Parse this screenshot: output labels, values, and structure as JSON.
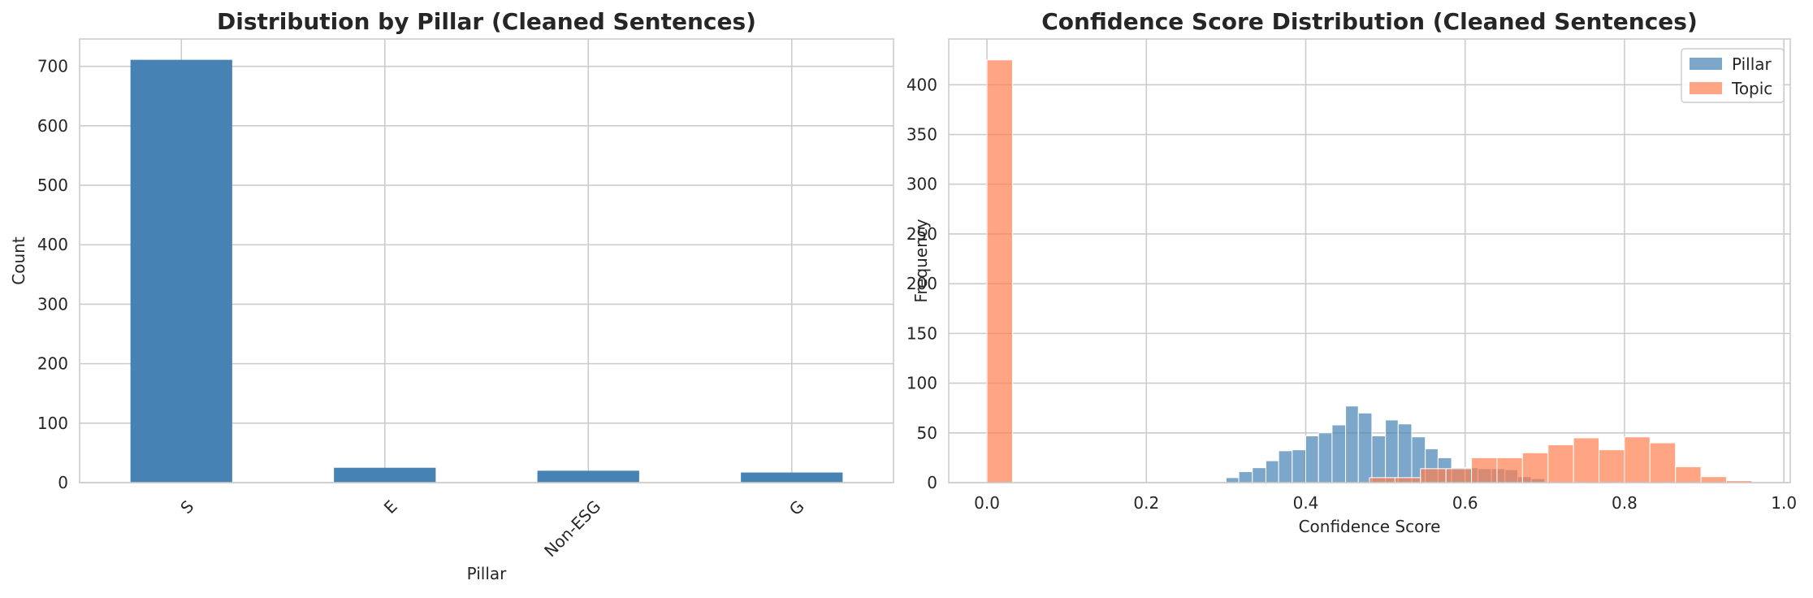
{
  "chart_data": [
    {
      "type": "bar",
      "title": "Distribution by Pillar (Cleaned Sentences)",
      "xlabel": "Pillar",
      "ylabel": "Count",
      "categories": [
        "S",
        "E",
        "Non-ESG",
        "G"
      ],
      "values": [
        711,
        25,
        20,
        17
      ],
      "ylim": [
        0,
        746
      ],
      "yticks": [
        0,
        100,
        200,
        300,
        400,
        500,
        600,
        700
      ],
      "bar_color": "#4682b4",
      "grid": true,
      "xtick_rotation": 45
    },
    {
      "type": "histogram",
      "title": "Confidence Score Distribution (Cleaned Sentences)",
      "xlabel": "Confidence Score",
      "ylabel": "Frequency",
      "xlim": [
        -0.048,
        1.008
      ],
      "ylim": [
        0,
        446
      ],
      "xticks": [
        0.0,
        0.2,
        0.4,
        0.6,
        0.8,
        1.0
      ],
      "xtick_labels": [
        "0.0",
        "0.2",
        "0.4",
        "0.6",
        "0.8",
        "1.0"
      ],
      "yticks": [
        0,
        50,
        100,
        150,
        200,
        250,
        300,
        350,
        400
      ],
      "grid": true,
      "legend_position": "top-right",
      "series": [
        {
          "name": "Pillar",
          "color": "#4682b4",
          "opacity": 0.7,
          "bins": [
            {
              "x0": 0.3,
              "x1": 0.316,
              "y": 5
            },
            {
              "x0": 0.316,
              "x1": 0.333,
              "y": 11
            },
            {
              "x0": 0.333,
              "x1": 0.35,
              "y": 15
            },
            {
              "x0": 0.35,
              "x1": 0.366,
              "y": 22
            },
            {
              "x0": 0.366,
              "x1": 0.383,
              "y": 32
            },
            {
              "x0": 0.383,
              "x1": 0.4,
              "y": 33
            },
            {
              "x0": 0.4,
              "x1": 0.416,
              "y": 47
            },
            {
              "x0": 0.416,
              "x1": 0.433,
              "y": 50
            },
            {
              "x0": 0.433,
              "x1": 0.45,
              "y": 58
            },
            {
              "x0": 0.45,
              "x1": 0.466,
              "y": 77
            },
            {
              "x0": 0.466,
              "x1": 0.483,
              "y": 70
            },
            {
              "x0": 0.483,
              "x1": 0.5,
              "y": 47
            },
            {
              "x0": 0.5,
              "x1": 0.516,
              "y": 63
            },
            {
              "x0": 0.516,
              "x1": 0.533,
              "y": 59
            },
            {
              "x0": 0.533,
              "x1": 0.55,
              "y": 46
            },
            {
              "x0": 0.55,
              "x1": 0.566,
              "y": 34
            },
            {
              "x0": 0.566,
              "x1": 0.583,
              "y": 25
            },
            {
              "x0": 0.583,
              "x1": 0.6,
              "y": 15
            },
            {
              "x0": 0.6,
              "x1": 0.616,
              "y": 15
            },
            {
              "x0": 0.616,
              "x1": 0.633,
              "y": 14
            },
            {
              "x0": 0.633,
              "x1": 0.65,
              "y": 14
            },
            {
              "x0": 0.65,
              "x1": 0.666,
              "y": 13
            },
            {
              "x0": 0.666,
              "x1": 0.683,
              "y": 6
            },
            {
              "x0": 0.683,
              "x1": 0.7,
              "y": 4
            }
          ]
        },
        {
          "name": "Topic",
          "color": "#ff7f50",
          "opacity": 0.7,
          "bins": [
            {
              "x0": 0.0,
              "x1": 0.032,
              "y": 425
            },
            {
              "x0": 0.48,
              "x1": 0.512,
              "y": 5
            },
            {
              "x0": 0.512,
              "x1": 0.544,
              "y": 5
            },
            {
              "x0": 0.544,
              "x1": 0.576,
              "y": 14
            },
            {
              "x0": 0.576,
              "x1": 0.608,
              "y": 14
            },
            {
              "x0": 0.608,
              "x1": 0.64,
              "y": 25
            },
            {
              "x0": 0.64,
              "x1": 0.672,
              "y": 25
            },
            {
              "x0": 0.672,
              "x1": 0.704,
              "y": 30
            },
            {
              "x0": 0.704,
              "x1": 0.736,
              "y": 38
            },
            {
              "x0": 0.736,
              "x1": 0.768,
              "y": 45
            },
            {
              "x0": 0.768,
              "x1": 0.8,
              "y": 33
            },
            {
              "x0": 0.8,
              "x1": 0.832,
              "y": 46
            },
            {
              "x0": 0.832,
              "x1": 0.864,
              "y": 40
            },
            {
              "x0": 0.864,
              "x1": 0.896,
              "y": 16
            },
            {
              "x0": 0.896,
              "x1": 0.928,
              "y": 6
            },
            {
              "x0": 0.928,
              "x1": 0.96,
              "y": 2
            }
          ]
        }
      ]
    }
  ]
}
